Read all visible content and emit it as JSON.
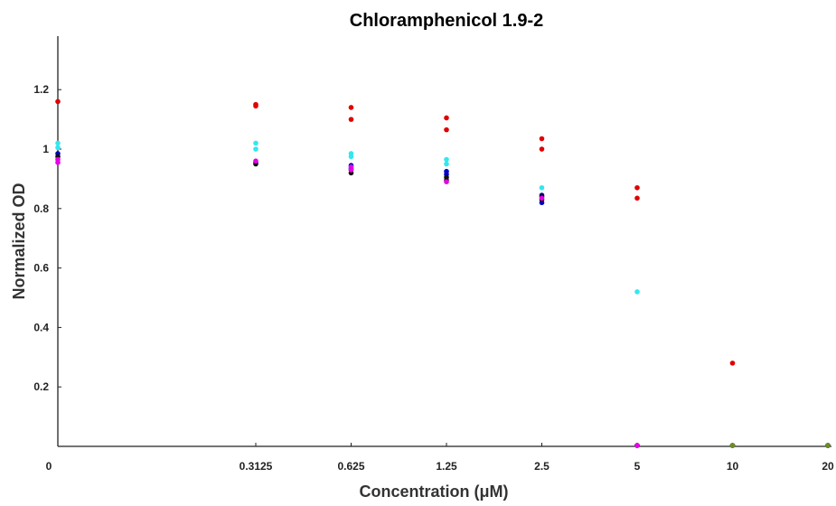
{
  "chart_data": {
    "type": "scatter",
    "title": "Chloramphenicol 1.9-2",
    "xlabel": "Concentration (μM)",
    "ylabel": "Normalized OD",
    "x_ticks": [
      "0",
      "0.3125",
      "0.625",
      "1.25",
      "2.5",
      "5",
      "10",
      "20"
    ],
    "y_ticks": [
      "0.2",
      "0.4",
      "0.6",
      "0.8",
      "1",
      "1.2"
    ],
    "ylim": [
      0,
      1.38
    ],
    "x_scale": "log2 with 0 shown at left",
    "grid": false,
    "series": [
      {
        "color": "#e00000",
        "points": [
          {
            "x": "0",
            "y": 1.16
          },
          {
            "x": "0.3125",
            "y": 1.15
          },
          {
            "x": "0.3125",
            "y": 1.145
          },
          {
            "x": "0.625",
            "y": 1.14
          },
          {
            "x": "0.625",
            "y": 1.1
          },
          {
            "x": "1.25",
            "y": 1.105
          },
          {
            "x": "1.25",
            "y": 1.065
          },
          {
            "x": "2.5",
            "y": 1.035
          },
          {
            "x": "2.5",
            "y": 1.0
          },
          {
            "x": "5",
            "y": 0.87
          },
          {
            "x": "5",
            "y": 0.835
          },
          {
            "x": "10",
            "y": 0.28
          },
          {
            "x": "20",
            "y": 0.0
          }
        ]
      },
      {
        "color": "#33e6f0",
        "points": [
          {
            "x": "0",
            "y": 1.02
          },
          {
            "x": "0",
            "y": 1.005
          },
          {
            "x": "0.3125",
            "y": 1.02
          },
          {
            "x": "0.3125",
            "y": 1.0
          },
          {
            "x": "0.625",
            "y": 0.985
          },
          {
            "x": "0.625",
            "y": 0.975
          },
          {
            "x": "1.25",
            "y": 0.965
          },
          {
            "x": "1.25",
            "y": 0.95
          },
          {
            "x": "2.5",
            "y": 0.87
          },
          {
            "x": "5",
            "y": 0.52
          },
          {
            "x": "10",
            "y": 0.0
          },
          {
            "x": "20",
            "y": 0.0
          }
        ]
      },
      {
        "color": "#0000c8",
        "points": [
          {
            "x": "0",
            "y": 0.985
          },
          {
            "x": "0.3125",
            "y": 0.955
          },
          {
            "x": "0.625",
            "y": 0.945
          },
          {
            "x": "0.625",
            "y": 0.935
          },
          {
            "x": "1.25",
            "y": 0.925
          },
          {
            "x": "1.25",
            "y": 0.915
          },
          {
            "x": "2.5",
            "y": 0.845
          },
          {
            "x": "2.5",
            "y": 0.82
          },
          {
            "x": "5",
            "y": 0.0
          },
          {
            "x": "10",
            "y": 0.0
          },
          {
            "x": "20",
            "y": 0.0
          }
        ]
      },
      {
        "color": "#101010",
        "points": [
          {
            "x": "0",
            "y": 0.975
          },
          {
            "x": "0.3125",
            "y": 0.95
          },
          {
            "x": "0.625",
            "y": 0.93
          },
          {
            "x": "0.625",
            "y": 0.92
          },
          {
            "x": "1.25",
            "y": 0.905
          },
          {
            "x": "1.25",
            "y": 0.895
          },
          {
            "x": "2.5",
            "y": 0.84
          },
          {
            "x": "2.5",
            "y": 0.83
          },
          {
            "x": "5",
            "y": 0.0
          },
          {
            "x": "10",
            "y": 0.0
          },
          {
            "x": "20",
            "y": 0.0
          }
        ]
      },
      {
        "color": "#e600e6",
        "points": [
          {
            "x": "0",
            "y": 0.965
          },
          {
            "x": "0",
            "y": 0.955
          },
          {
            "x": "0.3125",
            "y": 0.96
          },
          {
            "x": "0.625",
            "y": 0.94
          },
          {
            "x": "0.625",
            "y": 0.93
          },
          {
            "x": "1.25",
            "y": 0.89
          },
          {
            "x": "2.5",
            "y": 0.835
          },
          {
            "x": "5",
            "y": 0.0
          },
          {
            "x": "10",
            "y": 0.0
          },
          {
            "x": "20",
            "y": 0.0
          }
        ]
      },
      {
        "color": "#6b8e23",
        "points": [
          {
            "x": "10",
            "y": 0.0
          },
          {
            "x": "20",
            "y": 0.0
          }
        ]
      }
    ]
  }
}
